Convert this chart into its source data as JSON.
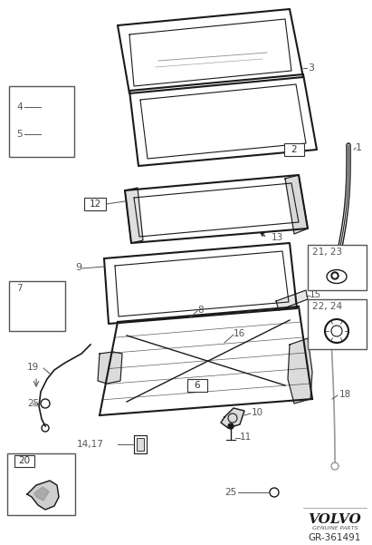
{
  "bg_color": "#ffffff",
  "line_color": "#1a1a1a",
  "label_color": "#444444",
  "volvo_text": "VOLVO",
  "genuine_parts": "GENUINE PARTS",
  "part_number": "GR-361491",
  "fig_width": 4.11,
  "fig_height": 6.01,
  "dpi": 100
}
